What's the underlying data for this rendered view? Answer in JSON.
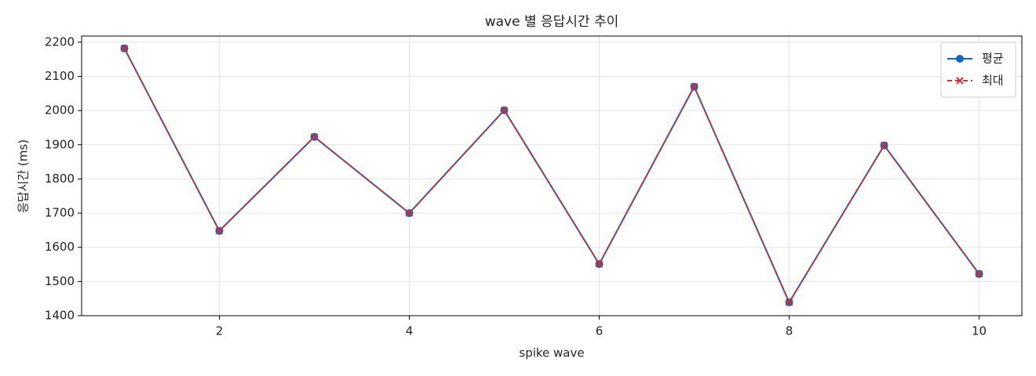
{
  "chart_data": {
    "type": "line",
    "title": "wave 별 응답시간 추이",
    "xlabel": "spike wave",
    "ylabel": "응답시간 (ms)",
    "x": [
      1,
      2,
      3,
      4,
      5,
      6,
      7,
      8,
      9,
      10
    ],
    "series": [
      {
        "name": "평균",
        "color": "#1565c0",
        "marker": "circle",
        "dash": false,
        "values": [
          2182,
          1648,
          1923,
          1700,
          2001,
          1551,
          2070,
          1439,
          1898,
          1522
        ]
      },
      {
        "name": "최대",
        "color": "#d32f2f",
        "marker": "x",
        "dash": true,
        "values": [
          2182,
          1648,
          1923,
          1700,
          2001,
          1551,
          2070,
          1439,
          1898,
          1522
        ]
      }
    ],
    "xlim": [
      0.55,
      10.45
    ],
    "xticks": [
      2,
      4,
      6,
      8,
      10
    ],
    "ylim": [
      1400,
      2218
    ],
    "yticks": [
      1400,
      1500,
      1600,
      1700,
      1800,
      1900,
      2000,
      2100,
      2200
    ],
    "grid": true,
    "legend": "upper right"
  }
}
